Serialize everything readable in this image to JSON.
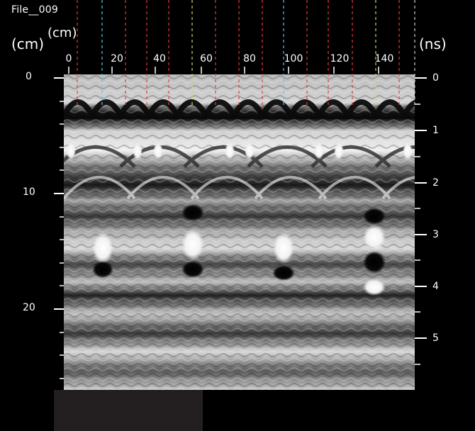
{
  "header": {
    "file_title": "File__009",
    "left_unit_outer": "(cm)",
    "left_unit_inner": "(cm)",
    "right_unit": "(ns)"
  },
  "axes": {
    "x_ticks": [
      "0",
      "20",
      "40",
      "60",
      "80",
      "100",
      "120",
      "140"
    ],
    "left_ticks": [
      "0",
      "10",
      "20"
    ],
    "right_ticks": [
      "0",
      "1",
      "2",
      "3",
      "4",
      "5"
    ]
  },
  "colors": {
    "background": "#000000",
    "marker_red": "#e23b3b",
    "marker_cyan": "#52c7ee",
    "marker_yellow": "#d7d26a",
    "panel": "#231f20"
  }
}
